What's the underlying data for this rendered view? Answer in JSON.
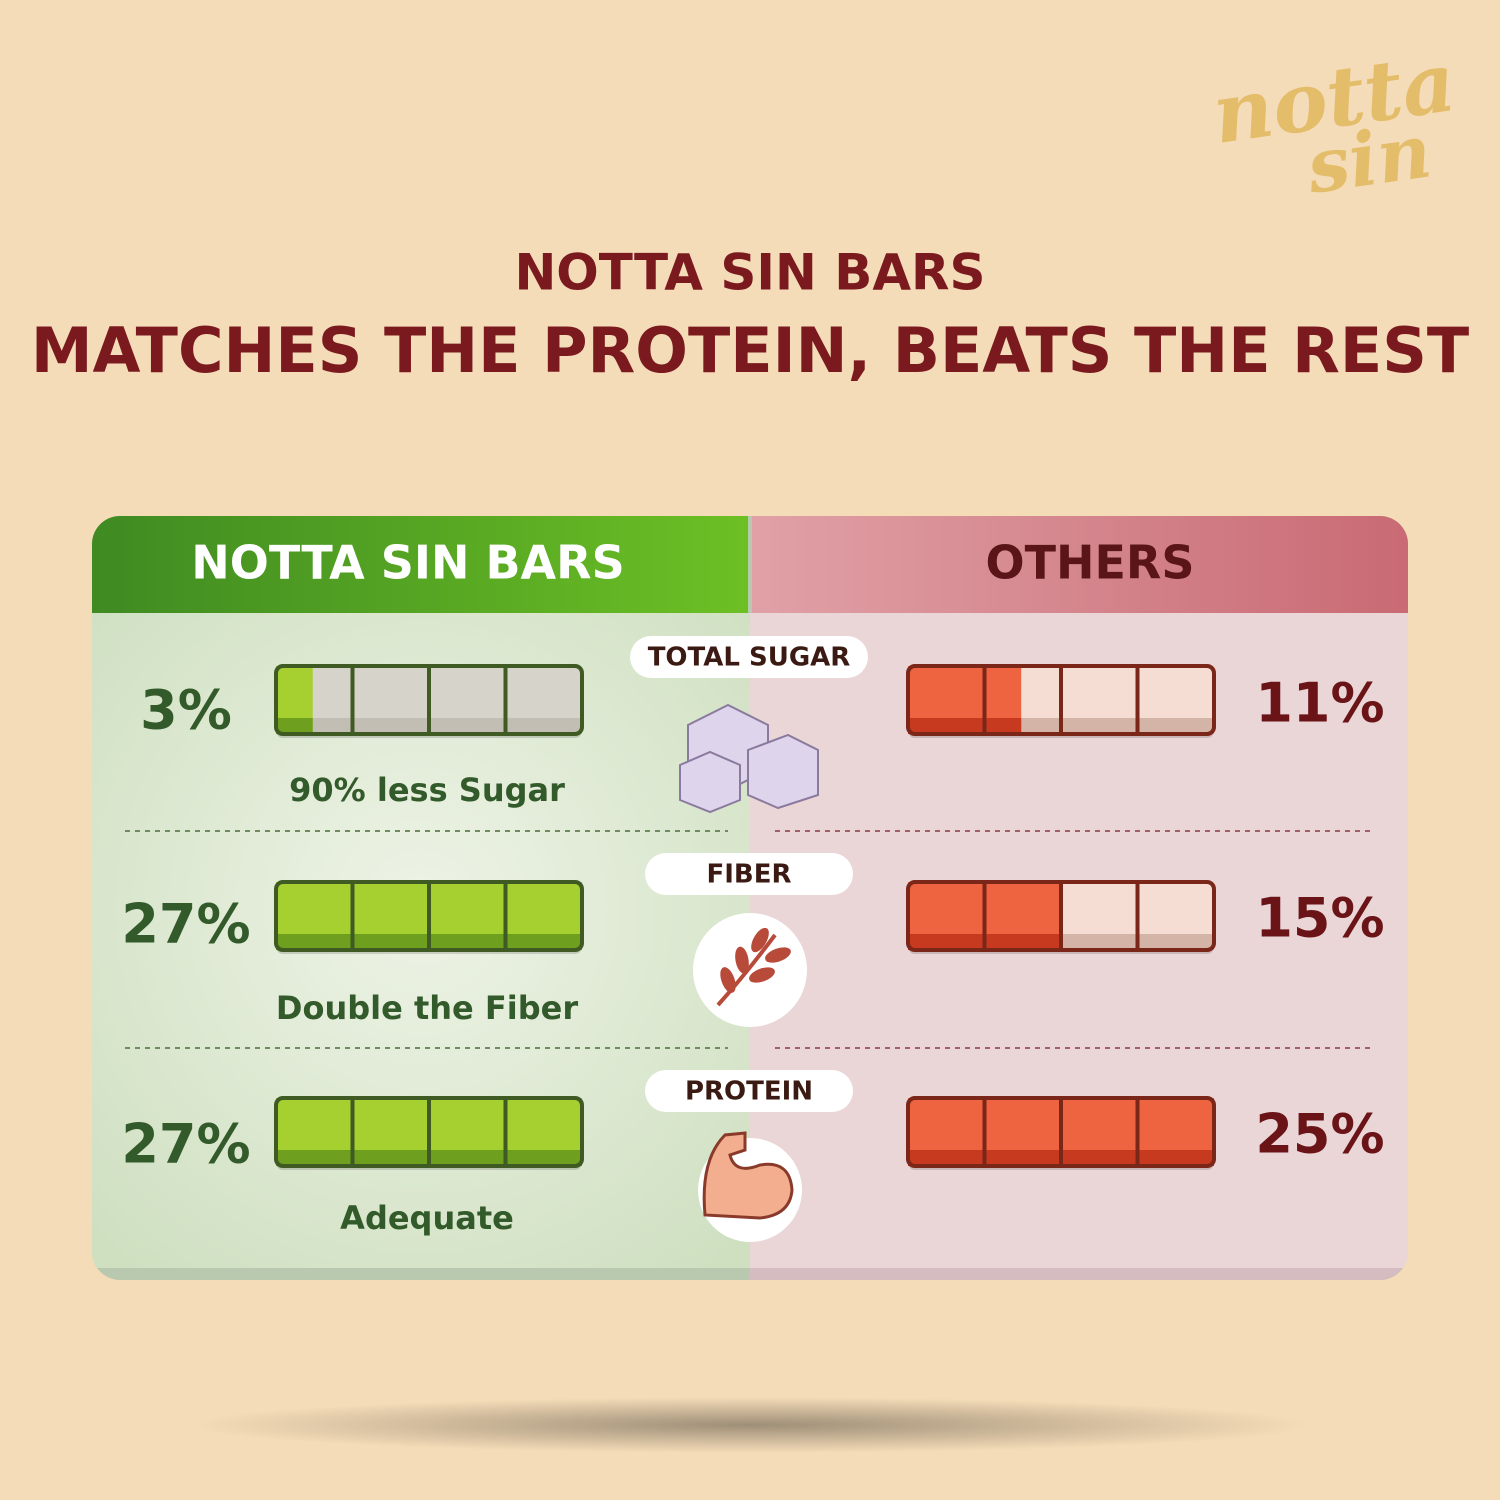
{
  "logo": {
    "line1": "notta",
    "line2": "sin"
  },
  "title": "NOTTA SIN BARS",
  "subtitle": "MATCHES THE PROTEIN, BEATS THE REST",
  "columns": [
    "NOTTA SIN BARS",
    "OTHERS"
  ],
  "rows": [
    {
      "label": "TOTAL SUGAR",
      "notta": "3%",
      "note": "90% less Sugar",
      "others": "11%"
    },
    {
      "label": "FIBER",
      "notta": "27%",
      "note": "Double the Fiber",
      "others": "15%"
    },
    {
      "label": "PROTEIN",
      "notta": "27%",
      "note": "Adequate",
      "others": "25%"
    }
  ]
}
